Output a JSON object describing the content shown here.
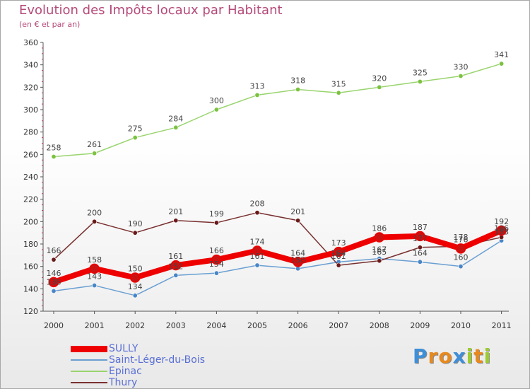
{
  "title": "Evolution des Impôts locaux par Habitant",
  "subtitle": "(en € et par an)",
  "logo": {
    "text": "Proxiti",
    "letters": [
      {
        "ch": "P",
        "color": "#3f8fd8"
      },
      {
        "ch": "r",
        "color": "#e8891d"
      },
      {
        "ch": "o",
        "color": "#e8891d"
      },
      {
        "ch": "x",
        "color": "#3f8fd8"
      },
      {
        "ch": "i",
        "color": "#9ccc2e"
      },
      {
        "ch": "t",
        "color": "#e8891d"
      },
      {
        "ch": "i",
        "color": "#9ccc2e"
      }
    ]
  },
  "chart_data": {
    "type": "line",
    "title": "Evolution des Impôts locaux par Habitant",
    "subtitle": "(en € et par an)",
    "x": [
      "2000",
      "2001",
      "2002",
      "2003",
      "2004",
      "2005",
      "2006",
      "2007",
      "2008",
      "2009",
      "2010",
      "2011"
    ],
    "ylim": [
      120,
      360
    ],
    "yticks": [
      120,
      140,
      160,
      180,
      200,
      220,
      240,
      260,
      280,
      300,
      320,
      340,
      360
    ],
    "grid": false,
    "legend_position": "bottom-left",
    "series": [
      {
        "name": "SULLY",
        "color": "#ee0000",
        "marker": "#cc1111",
        "width": 8,
        "values": [
          146,
          158,
          150,
          161,
          166,
          174,
          164,
          173,
          186,
          187,
          176,
          192
        ]
      },
      {
        "name": "Saint-Léger-du-Bois",
        "color": "#6a9fd2",
        "marker": "#4a86c6",
        "width": 1.5,
        "values": [
          138,
          143,
          134,
          152,
          154,
          161,
          158,
          164,
          167,
          164,
          160,
          183
        ]
      },
      {
        "name": "Epinac",
        "color": "#99d46e",
        "marker": "#7cc241",
        "width": 1.5,
        "values": [
          258,
          261,
          275,
          284,
          300,
          313,
          318,
          315,
          320,
          325,
          330,
          341
        ]
      },
      {
        "name": "Thury",
        "color": "#7a3030",
        "marker": "#6a1a1a",
        "width": 1.5,
        "values": [
          166,
          200,
          190,
          201,
          199,
          208,
          201,
          161,
          165,
          177,
          178,
          186
        ]
      }
    ]
  }
}
